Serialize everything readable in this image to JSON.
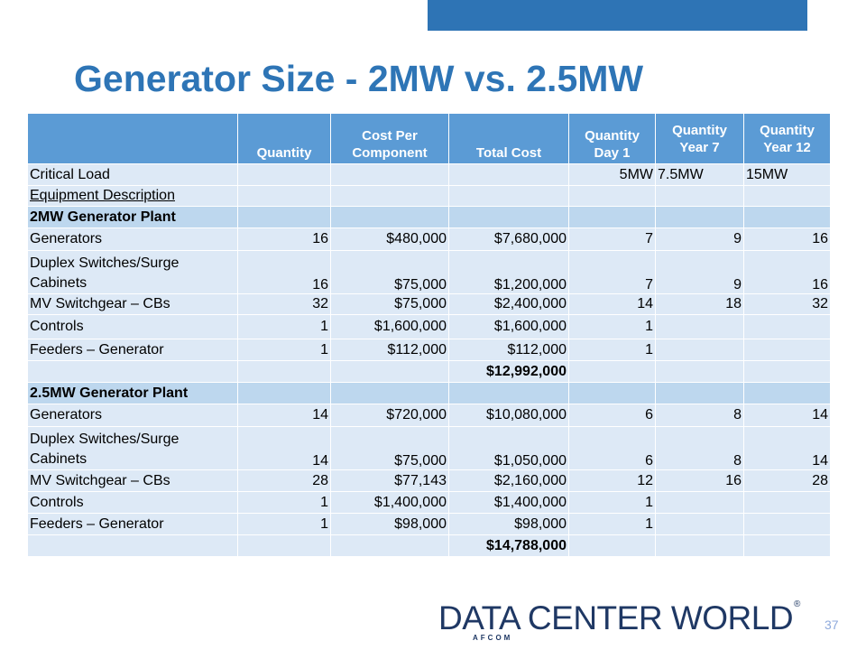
{
  "title": "Generator Size - 2MW vs. 2.5MW",
  "table": {
    "headers": [
      "",
      "Quantity",
      "Cost Per Component",
      "Total Cost",
      "Quantity Day 1",
      "Quantity Year 7",
      "Quantity Year 12"
    ],
    "rows": [
      [
        "Critical Load",
        "",
        "",
        "",
        "5MW",
        "7.5MW",
        "15MW"
      ],
      [
        "Equipment Description",
        "",
        "",
        "",
        "",
        "",
        ""
      ],
      [
        "2MW Generator Plant",
        "",
        "",
        "",
        "",
        "",
        ""
      ],
      [
        "Generators",
        "16",
        "$480,000",
        "$7,680,000",
        "7",
        "9",
        "16"
      ],
      [
        "Duplex Switches/Surge Cabinets",
        "16",
        "$75,000",
        "$1,200,000",
        "7",
        "9",
        "16"
      ],
      [
        "MV Switchgear – CBs",
        "32",
        "$75,000",
        "$2,400,000",
        "14",
        "18",
        "32"
      ],
      [
        "Controls",
        "1",
        "$1,600,000",
        "$1,600,000",
        "1",
        "",
        ""
      ],
      [
        "Feeders – Generator",
        "1",
        "$112,000",
        "$112,000",
        "1",
        "",
        ""
      ],
      [
        "",
        "",
        "",
        "$12,992,000",
        "",
        "",
        ""
      ],
      [
        "2.5MW Generator Plant",
        "",
        "",
        "",
        "",
        "",
        ""
      ],
      [
        "Generators",
        "14",
        "$720,000",
        "$10,080,000",
        "6",
        "8",
        "14"
      ],
      [
        "Duplex Switches/Surge Cabinets",
        "14",
        "$75,000",
        "$1,050,000",
        "6",
        "8",
        "14"
      ],
      [
        "MV Switchgear – CBs",
        "28",
        "$77,143",
        "$2,160,000",
        "12",
        "16",
        "28"
      ],
      [
        "Controls",
        "1",
        "$1,400,000",
        "$1,400,000",
        "1",
        "",
        ""
      ],
      [
        "Feeders – Generator",
        "1",
        "$98,000",
        "$98,000",
        "1",
        "",
        ""
      ],
      [
        "",
        "",
        "",
        "$14,788,000",
        "",
        "",
        ""
      ]
    ]
  },
  "logo": {
    "main": "DATA CENTER WORLD",
    "sub": "AFCOM",
    "reg": "®"
  },
  "slide_number": "37",
  "colors": {
    "accent": "#2e74b5",
    "title": "#2e75b6",
    "header_fill": "#5b9bd5",
    "row_fill": "#dde9f6",
    "section_fill": "#bdd7ee",
    "logo": "#1f3864"
  }
}
